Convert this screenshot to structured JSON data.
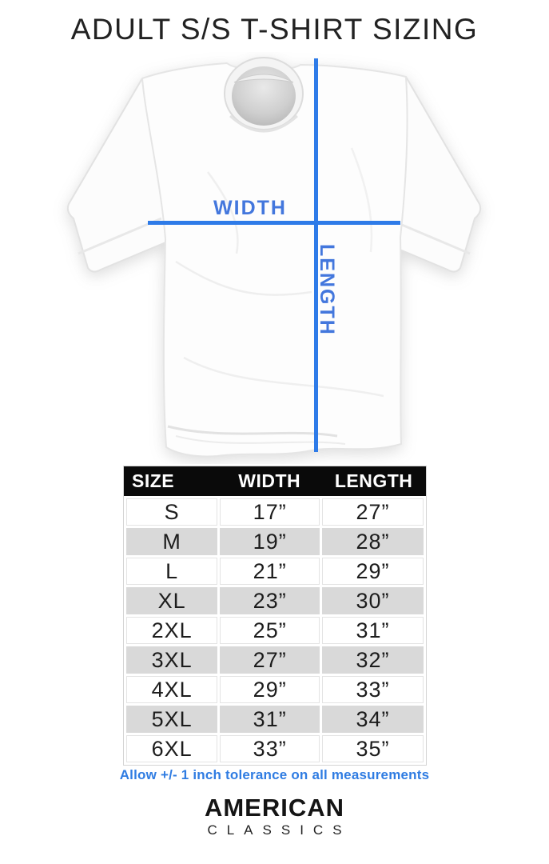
{
  "page": {
    "title": "ADULT S/S T-SHIRT SIZING"
  },
  "diagram": {
    "width_label": "WIDTH",
    "length_label": "LENGTH"
  },
  "size_table": {
    "header": {
      "size": "SIZE",
      "width": "WIDTH",
      "length": "LENGTH"
    },
    "rows": [
      {
        "size": "S",
        "width": "17”",
        "length": "27”"
      },
      {
        "size": "M",
        "width": "19”",
        "length": "28”"
      },
      {
        "size": "L",
        "width": "21”",
        "length": "29”"
      },
      {
        "size": "XL",
        "width": "23”",
        "length": "30”"
      },
      {
        "size": "2XL",
        "width": "25”",
        "length": "31”"
      },
      {
        "size": "3XL",
        "width": "27”",
        "length": "32”"
      },
      {
        "size": "4XL",
        "width": "29”",
        "length": "33”"
      },
      {
        "size": "5XL",
        "width": "31”",
        "length": "34”"
      },
      {
        "size": "6XL",
        "width": "33”",
        "length": "35”"
      }
    ]
  },
  "tolerance_note": {
    "text": "Allow +/- 1 inch tolerance on all measurements"
  },
  "brand": {
    "line1": "AMERICAN",
    "line2": "CLASSICS"
  },
  "colors": {
    "accent-blue": "#2e7be8",
    "label-blue": "#4377dd",
    "note-blue": "#2f7ce2",
    "header-bg": "#0a0a0a",
    "header-text": "#ffffff",
    "stripe-gray": "#d9d9d9",
    "cell-border": "#e3e3e3",
    "table-border": "#d4d4d4",
    "title-color": "#222222",
    "cell-text": "#1c1c1c",
    "brand-color": "#141414"
  }
}
